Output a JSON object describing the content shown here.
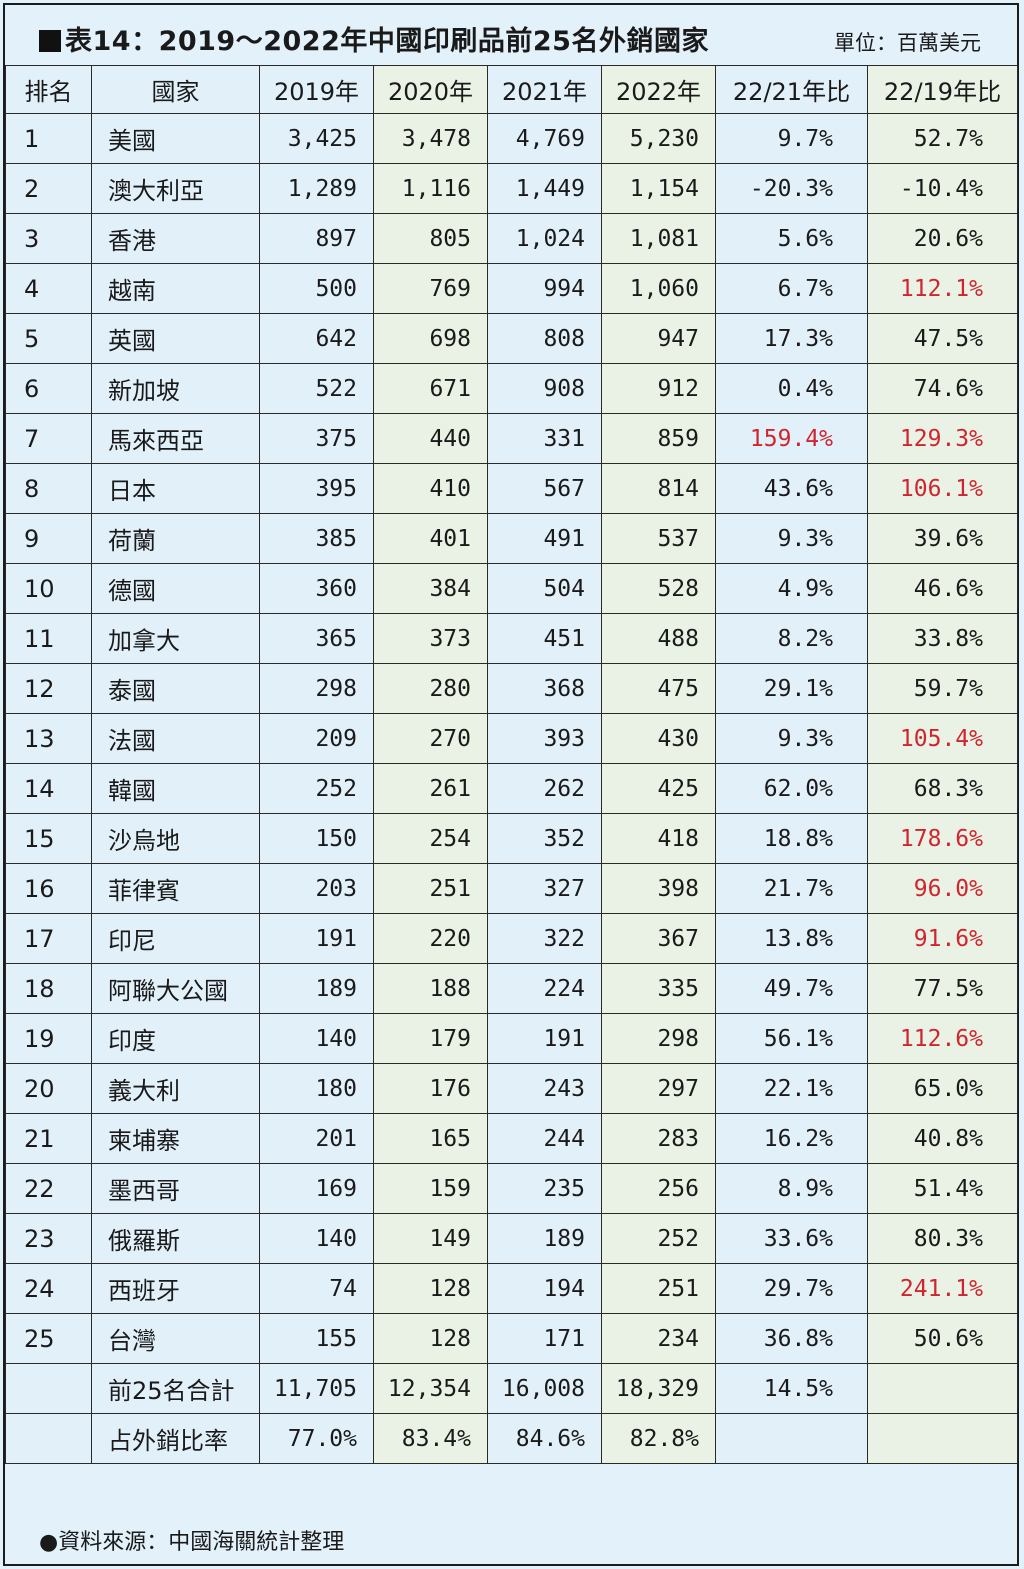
{
  "title": "表14：2019～2022年中國印刷品前25名外銷國家",
  "unit": "單位：百萬美元",
  "headers": [
    "排名",
    "國家",
    "2019年",
    "2020年",
    "2021年",
    "2022年",
    "22/21年比",
    "22/19年比"
  ],
  "rows": [
    {
      "rank": "1",
      "country": "美國",
      "y2019": "3,425",
      "y2020": "3,478",
      "y2021": "4,769",
      "y2022": "5,230",
      "r2221": "9.7%",
      "r2219": "52.7%",
      "hl2221": false,
      "hl2219": false
    },
    {
      "rank": "2",
      "country": "澳大利亞",
      "y2019": "1,289",
      "y2020": "1,116",
      "y2021": "1,449",
      "y2022": "1,154",
      "r2221": "-20.3%",
      "r2219": "-10.4%",
      "hl2221": false,
      "hl2219": false
    },
    {
      "rank": "3",
      "country": "香港",
      "y2019": "897",
      "y2020": "805",
      "y2021": "1,024",
      "y2022": "1,081",
      "r2221": "5.6%",
      "r2219": "20.6%",
      "hl2221": false,
      "hl2219": false
    },
    {
      "rank": "4",
      "country": "越南",
      "y2019": "500",
      "y2020": "769",
      "y2021": "994",
      "y2022": "1,060",
      "r2221": "6.7%",
      "r2219": "112.1%",
      "hl2221": false,
      "hl2219": true
    },
    {
      "rank": "5",
      "country": "英國",
      "y2019": "642",
      "y2020": "698",
      "y2021": "808",
      "y2022": "947",
      "r2221": "17.3%",
      "r2219": "47.5%",
      "hl2221": false,
      "hl2219": false
    },
    {
      "rank": "6",
      "country": "新加坡",
      "y2019": "522",
      "y2020": "671",
      "y2021": "908",
      "y2022": "912",
      "r2221": "0.4%",
      "r2219": "74.6%",
      "hl2221": false,
      "hl2219": false
    },
    {
      "rank": "7",
      "country": "馬來西亞",
      "y2019": "375",
      "y2020": "440",
      "y2021": "331",
      "y2022": "859",
      "r2221": "159.4%",
      "r2219": "129.3%",
      "hl2221": true,
      "hl2219": true
    },
    {
      "rank": "8",
      "country": "日本",
      "y2019": "395",
      "y2020": "410",
      "y2021": "567",
      "y2022": "814",
      "r2221": "43.6%",
      "r2219": "106.1%",
      "hl2221": false,
      "hl2219": true
    },
    {
      "rank": "9",
      "country": "荷蘭",
      "y2019": "385",
      "y2020": "401",
      "y2021": "491",
      "y2022": "537",
      "r2221": "9.3%",
      "r2219": "39.6%",
      "hl2221": false,
      "hl2219": false
    },
    {
      "rank": "10",
      "country": "德國",
      "y2019": "360",
      "y2020": "384",
      "y2021": "504",
      "y2022": "528",
      "r2221": "4.9%",
      "r2219": "46.6%",
      "hl2221": false,
      "hl2219": false
    },
    {
      "rank": "11",
      "country": "加拿大",
      "y2019": "365",
      "y2020": "373",
      "y2021": "451",
      "y2022": "488",
      "r2221": "8.2%",
      "r2219": "33.8%",
      "hl2221": false,
      "hl2219": false
    },
    {
      "rank": "12",
      "country": "泰國",
      "y2019": "298",
      "y2020": "280",
      "y2021": "368",
      "y2022": "475",
      "r2221": "29.1%",
      "r2219": "59.7%",
      "hl2221": false,
      "hl2219": false
    },
    {
      "rank": "13",
      "country": "法國",
      "y2019": "209",
      "y2020": "270",
      "y2021": "393",
      "y2022": "430",
      "r2221": "9.3%",
      "r2219": "105.4%",
      "hl2221": false,
      "hl2219": true
    },
    {
      "rank": "14",
      "country": "韓國",
      "y2019": "252",
      "y2020": "261",
      "y2021": "262",
      "y2022": "425",
      "r2221": "62.0%",
      "r2219": "68.3%",
      "hl2221": false,
      "hl2219": false
    },
    {
      "rank": "15",
      "country": "沙烏地",
      "y2019": "150",
      "y2020": "254",
      "y2021": "352",
      "y2022": "418",
      "r2221": "18.8%",
      "r2219": "178.6%",
      "hl2221": false,
      "hl2219": true
    },
    {
      "rank": "16",
      "country": "菲律賓",
      "y2019": "203",
      "y2020": "251",
      "y2021": "327",
      "y2022": "398",
      "r2221": "21.7%",
      "r2219": "96.0%",
      "hl2221": false,
      "hl2219": true
    },
    {
      "rank": "17",
      "country": "印尼",
      "y2019": "191",
      "y2020": "220",
      "y2021": "322",
      "y2022": "367",
      "r2221": "13.8%",
      "r2219": "91.6%",
      "hl2221": false,
      "hl2219": true
    },
    {
      "rank": "18",
      "country": "阿聯大公國",
      "y2019": "189",
      "y2020": "188",
      "y2021": "224",
      "y2022": "335",
      "r2221": "49.7%",
      "r2219": "77.5%",
      "hl2221": false,
      "hl2219": false
    },
    {
      "rank": "19",
      "country": "印度",
      "y2019": "140",
      "y2020": "179",
      "y2021": "191",
      "y2022": "298",
      "r2221": "56.1%",
      "r2219": "112.6%",
      "hl2221": false,
      "hl2219": true
    },
    {
      "rank": "20",
      "country": "義大利",
      "y2019": "180",
      "y2020": "176",
      "y2021": "243",
      "y2022": "297",
      "r2221": "22.1%",
      "r2219": "65.0%",
      "hl2221": false,
      "hl2219": false
    },
    {
      "rank": "21",
      "country": "柬埔寨",
      "y2019": "201",
      "y2020": "165",
      "y2021": "244",
      "y2022": "283",
      "r2221": "16.2%",
      "r2219": "40.8%",
      "hl2221": false,
      "hl2219": false
    },
    {
      "rank": "22",
      "country": "墨西哥",
      "y2019": "169",
      "y2020": "159",
      "y2021": "235",
      "y2022": "256",
      "r2221": "8.9%",
      "r2219": "51.4%",
      "hl2221": false,
      "hl2219": false
    },
    {
      "rank": "23",
      "country": "俄羅斯",
      "y2019": "140",
      "y2020": "149",
      "y2021": "189",
      "y2022": "252",
      "r2221": "33.6%",
      "r2219": "80.3%",
      "hl2221": false,
      "hl2219": false
    },
    {
      "rank": "24",
      "country": "西班牙",
      "y2019": "74",
      "y2020": "128",
      "y2021": "194",
      "y2022": "251",
      "r2221": "29.7%",
      "r2219": "241.1%",
      "hl2221": false,
      "hl2219": true
    },
    {
      "rank": "25",
      "country": "台灣",
      "y2019": "155",
      "y2020": "128",
      "y2021": "171",
      "y2022": "234",
      "r2221": "36.8%",
      "r2219": "50.6%",
      "hl2221": false,
      "hl2219": false
    }
  ],
  "totals": [
    {
      "rank": "",
      "country": "前25名合計",
      "y2019": "11,705",
      "y2020": "12,354",
      "y2021": "16,008",
      "y2022": "18,329",
      "r2221": "14.5%",
      "r2219": ""
    },
    {
      "rank": "",
      "country": "占外銷比率",
      "y2019": "77.0%",
      "y2020": "83.4%",
      "y2021": "84.6%",
      "y2022": "82.8%",
      "r2221": "",
      "r2219": ""
    }
  ],
  "source": "●資料來源：中國海關統計整理",
  "colors": {
    "highlight_red": "#d0252f",
    "blue_bg": "#e2f0fa",
    "green_bg": "#e9f2e4",
    "border": "#2a2a2a"
  }
}
